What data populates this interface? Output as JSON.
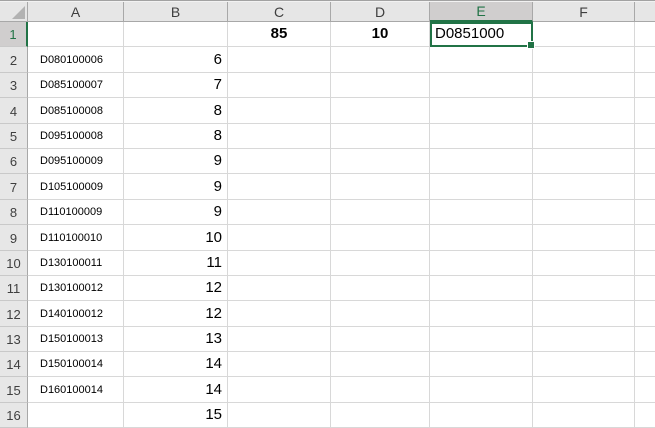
{
  "columns": {
    "a": "A",
    "b": "B",
    "c": "C",
    "d": "D",
    "e": "E",
    "f": "F"
  },
  "row1": {
    "n": "1",
    "c": "85",
    "d": "10",
    "e": "D0851000"
  },
  "rows": [
    {
      "n": "2",
      "a": "D080100006",
      "b": "6"
    },
    {
      "n": "3",
      "a": "D085100007",
      "b": "7"
    },
    {
      "n": "4",
      "a": "D085100008",
      "b": "8"
    },
    {
      "n": "5",
      "a": "D095100008",
      "b": "8"
    },
    {
      "n": "6",
      "a": "D095100009",
      "b": "9"
    },
    {
      "n": "7",
      "a": "D105100009",
      "b": "9"
    },
    {
      "n": "8",
      "a": "D110100009",
      "b": "9"
    },
    {
      "n": "9",
      "a": "D110100010",
      "b": "10"
    },
    {
      "n": "10",
      "a": "D130100011",
      "b": "11"
    },
    {
      "n": "11",
      "a": "D130100012",
      "b": "12"
    },
    {
      "n": "12",
      "a": "D140100012",
      "b": "12"
    },
    {
      "n": "13",
      "a": "D150100013",
      "b": "13"
    },
    {
      "n": "14",
      "a": "D150100014",
      "b": "14"
    },
    {
      "n": "15",
      "a": "D160100014",
      "b": "14"
    },
    {
      "n": "16",
      "a": "",
      "b": "15"
    }
  ],
  "colors": {
    "accent_green": "#217346",
    "header_bg": "#E6E6E6",
    "selected_header_bg": "#D0CECE",
    "gridline": "#D8D8D8"
  }
}
